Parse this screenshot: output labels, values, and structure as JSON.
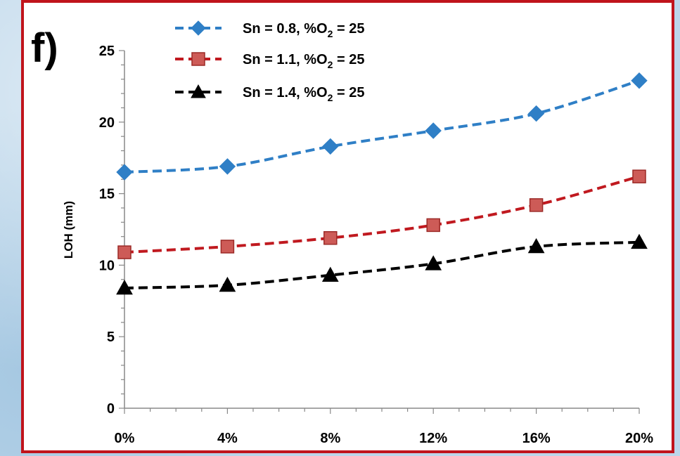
{
  "panel_label": "f)",
  "colors": {
    "frame": "#c0141c",
    "series": [
      "#2f7fc6",
      "#c0191f",
      "#000000"
    ],
    "marker_fill": [
      "#2f7fc6",
      "#cd5b57",
      "#000000"
    ]
  },
  "legend_entries": [
    {
      "prefix": "Sn = 0.8, %O",
      "sub": "2",
      "suffix": " = 25",
      "marker": "diamond"
    },
    {
      "prefix": "Sn = 1.1, %O",
      "sub": "2",
      "suffix": " = 25",
      "marker": "square"
    },
    {
      "prefix": "Sn = 1.4, %O",
      "sub": "2",
      "suffix": " = 25",
      "marker": "triangle"
    }
  ],
  "chart_data": {
    "type": "line",
    "title": "",
    "xlabel": "",
    "ylabel": "LOH (mm)",
    "categories": [
      "0%",
      "4%",
      "8%",
      "12%",
      "16%",
      "20%"
    ],
    "ylim": [
      0,
      25
    ],
    "yticks": [
      "0",
      "5",
      "10",
      "15",
      "20",
      "25"
    ],
    "grid": false,
    "legend_position": "top",
    "series": [
      {
        "name": "Sn = 0.8, %O2 = 25",
        "marker": "diamond",
        "values": [
          16.5,
          16.9,
          18.3,
          19.4,
          20.6,
          22.9
        ]
      },
      {
        "name": "Sn = 1.1, %O2 = 25",
        "marker": "square",
        "values": [
          10.9,
          11.3,
          11.9,
          12.8,
          14.2,
          16.2
        ]
      },
      {
        "name": "Sn = 1.4, %O2 = 25",
        "marker": "triangle",
        "values": [
          8.4,
          8.6,
          9.3,
          10.1,
          11.3,
          11.6
        ]
      }
    ]
  }
}
